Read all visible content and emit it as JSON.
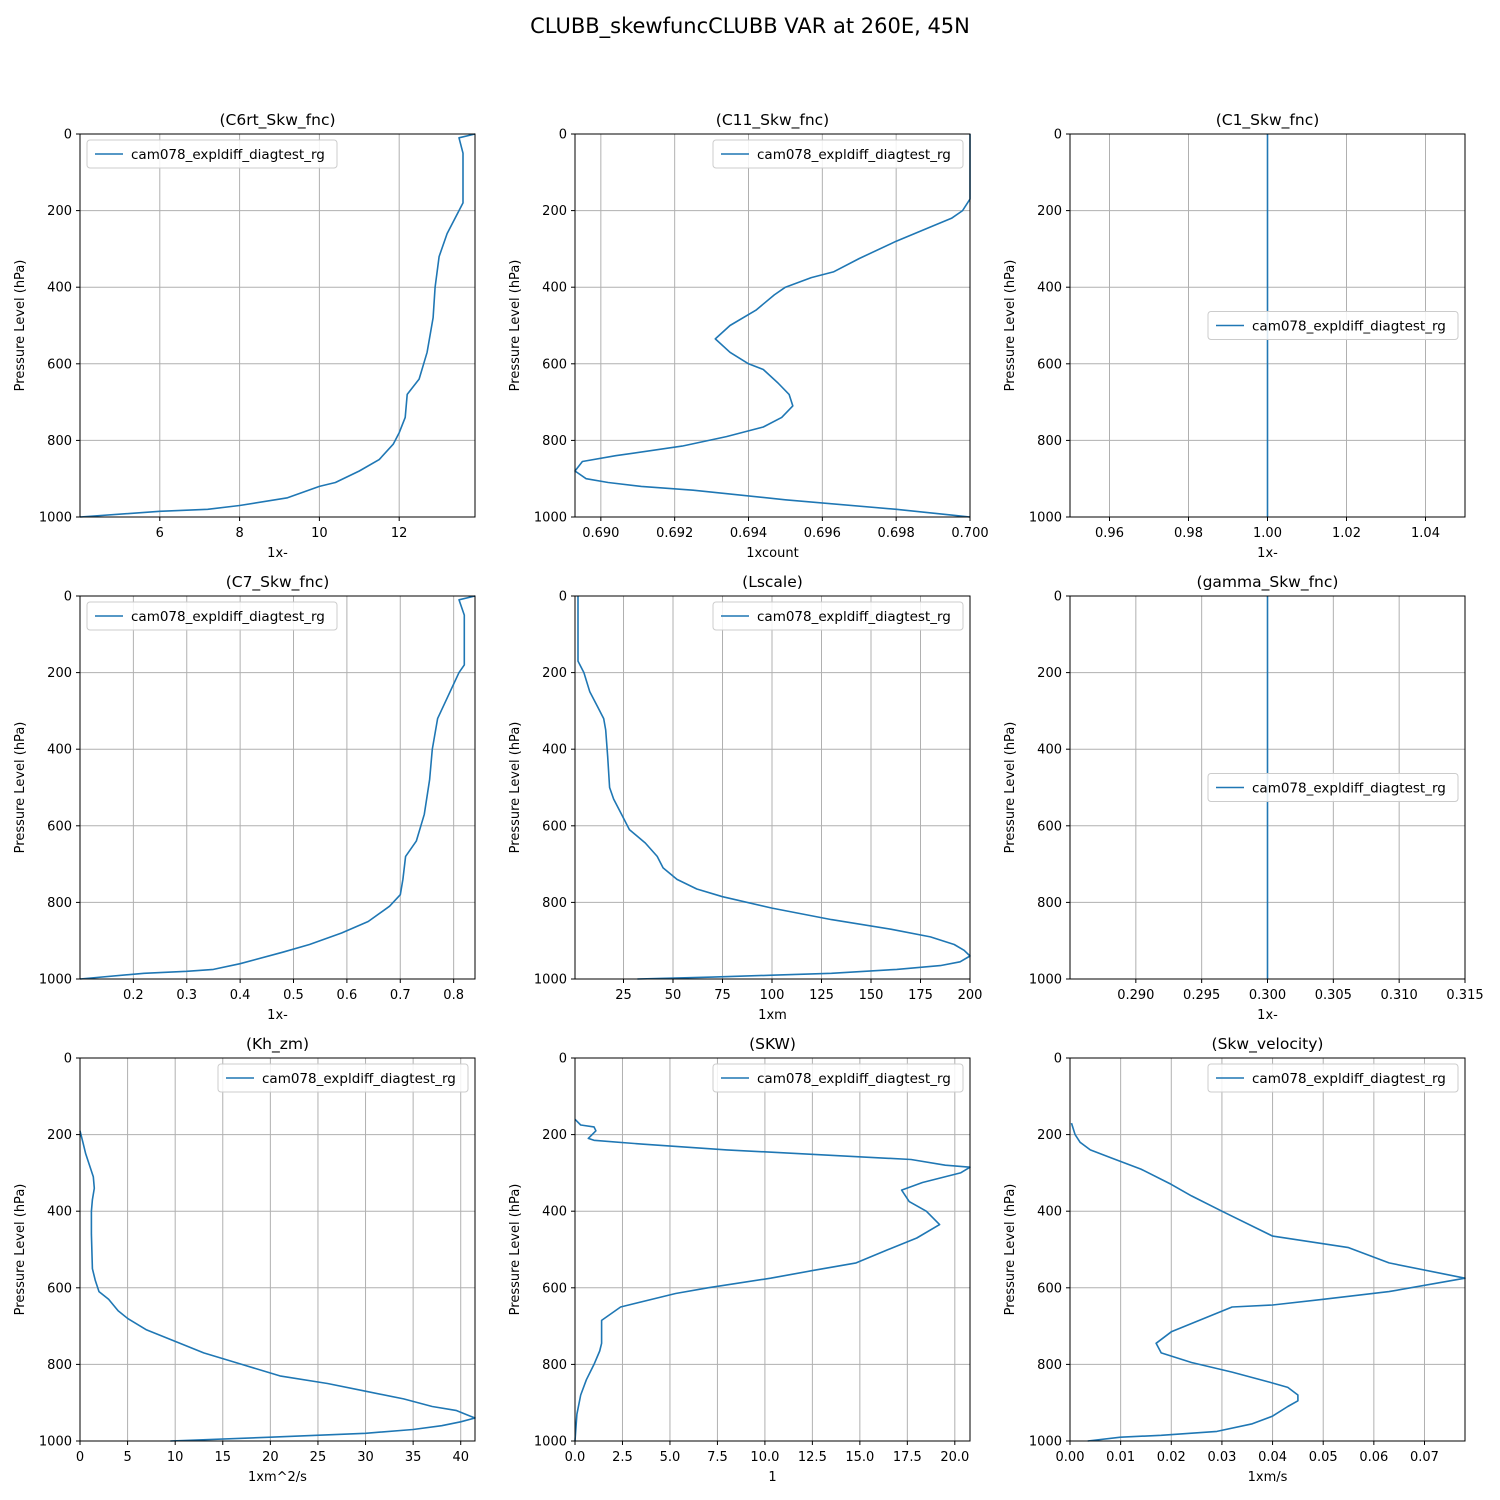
{
  "figure_title": "CLUBB_skewfuncCLUBB VAR at 260E, 45N",
  "colors": {
    "series": "#1f77b4",
    "grid": "#b0b0b0",
    "axis": "#000000"
  },
  "chart_data": [
    {
      "type": "line",
      "title": "(C6rt_Skw_fnc)",
      "xlabel": "1x-",
      "ylabel": "Pressure Level (hPa)",
      "xlim": [
        4.0,
        13.9
      ],
      "ylim": [
        1000,
        0
      ],
      "xticks": [
        6,
        8,
        10,
        12
      ],
      "xtick_labels": [
        "6",
        "8",
        "10",
        "12"
      ],
      "yticks": [
        0,
        200,
        400,
        600,
        800,
        1000
      ],
      "ytick_labels": [
        "0",
        "200",
        "400",
        "600",
        "800",
        "1000"
      ],
      "grid": true,
      "legend_position": "upper left",
      "series": [
        {
          "name": "cam078_expldiff_diagtest_rg",
          "x": [
            13.9,
            13.5,
            13.6,
            13.6,
            13.6,
            13.5,
            13.2,
            13.0,
            12.9,
            12.85,
            12.7,
            12.5,
            12.2,
            12.15,
            12.0,
            11.85,
            11.5,
            11.0,
            10.4,
            10.0,
            9.2,
            8.0,
            7.2,
            6.0,
            4.0
          ],
          "y": [
            0,
            10,
            50,
            120,
            180,
            200,
            260,
            320,
            400,
            480,
            570,
            640,
            680,
            740,
            780,
            810,
            850,
            880,
            910,
            920,
            950,
            970,
            980,
            985,
            1000
          ]
        }
      ]
    },
    {
      "type": "line",
      "title": "(C11_Skw_fnc)",
      "xlabel": "1xcount",
      "ylabel": "Pressure Level (hPa)",
      "xlim": [
        0.6893,
        0.7
      ],
      "ylim": [
        1000,
        0
      ],
      "xticks": [
        0.69,
        0.692,
        0.694,
        0.696,
        0.698,
        0.7
      ],
      "xtick_labels": [
        "0.690",
        "0.692",
        "0.694",
        "0.696",
        "0.698",
        "0.700"
      ],
      "yticks": [
        0,
        200,
        400,
        600,
        800,
        1000
      ],
      "ytick_labels": [
        "0",
        "200",
        "400",
        "600",
        "800",
        "1000"
      ],
      "grid": true,
      "legend_position": "upper right",
      "series": [
        {
          "name": "cam078_expldiff_diagtest_rg",
          "x": [
            0.7,
            0.7,
            0.6998,
            0.6995,
            0.699,
            0.698,
            0.697,
            0.6963,
            0.6957,
            0.695,
            0.6947,
            0.6942,
            0.6935,
            0.6931,
            0.6935,
            0.694,
            0.6944,
            0.6948,
            0.6951,
            0.6952,
            0.6949,
            0.6944,
            0.6934,
            0.6922,
            0.6904,
            0.6895,
            0.6893,
            0.6896,
            0.6902,
            0.6911,
            0.6925,
            0.695,
            0.698,
            0.6995,
            0.7
          ],
          "y": [
            0,
            170,
            200,
            220,
            240,
            280,
            325,
            360,
            375,
            400,
            420,
            460,
            500,
            535,
            570,
            600,
            615,
            650,
            680,
            710,
            740,
            765,
            790,
            815,
            840,
            855,
            880,
            900,
            910,
            920,
            930,
            955,
            980,
            995,
            1000
          ]
        }
      ]
    },
    {
      "type": "line",
      "title": "(C1_Skw_fnc)",
      "xlabel": "1x-",
      "ylabel": "Pressure Level (hPa)",
      "xlim": [
        0.95,
        1.05
      ],
      "ylim": [
        1000,
        0
      ],
      "xticks": [
        0.96,
        0.98,
        1.0,
        1.02,
        1.04
      ],
      "xtick_labels": [
        "0.96",
        "0.98",
        "1.00",
        "1.02",
        "1.04"
      ],
      "yticks": [
        0,
        200,
        400,
        600,
        800,
        1000
      ],
      "ytick_labels": [
        "0",
        "200",
        "400",
        "600",
        "800",
        "1000"
      ],
      "grid": true,
      "legend_position": "center right",
      "series": [
        {
          "name": "cam078_expldiff_diagtest_rg",
          "x": [
            1.0,
            1.0
          ],
          "y": [
            0,
            1000
          ]
        }
      ]
    },
    {
      "type": "line",
      "title": "(C7_Skw_fnc)",
      "xlabel": "1x-",
      "ylabel": "Pressure Level (hPa)",
      "xlim": [
        0.1,
        0.84
      ],
      "ylim": [
        1000,
        0
      ],
      "xticks": [
        0.2,
        0.3,
        0.4,
        0.5,
        0.6,
        0.7,
        0.8
      ],
      "xtick_labels": [
        "0.2",
        "0.3",
        "0.4",
        "0.5",
        "0.6",
        "0.7",
        "0.8"
      ],
      "yticks": [
        0,
        200,
        400,
        600,
        800,
        1000
      ],
      "ytick_labels": [
        "0",
        "200",
        "400",
        "600",
        "800",
        "1000"
      ],
      "grid": true,
      "legend_position": "upper left",
      "series": [
        {
          "name": "cam078_expldiff_diagtest_rg",
          "x": [
            0.84,
            0.81,
            0.82,
            0.82,
            0.82,
            0.81,
            0.79,
            0.77,
            0.76,
            0.755,
            0.745,
            0.73,
            0.71,
            0.705,
            0.7,
            0.68,
            0.64,
            0.59,
            0.53,
            0.48,
            0.4,
            0.35,
            0.3,
            0.22,
            0.1
          ],
          "y": [
            0,
            10,
            50,
            120,
            180,
            200,
            260,
            320,
            400,
            480,
            570,
            640,
            680,
            740,
            780,
            810,
            850,
            880,
            910,
            930,
            960,
            975,
            980,
            985,
            1000
          ]
        }
      ]
    },
    {
      "type": "line",
      "title": "(Lscale)",
      "xlabel": "1xm",
      "ylabel": "Pressure Level (hPa)",
      "xlim": [
        0.5,
        200
      ],
      "ylim": [
        1000,
        0
      ],
      "xticks": [
        25,
        50,
        75,
        100,
        125,
        150,
        175,
        200
      ],
      "xtick_labels": [
        "25",
        "50",
        "75",
        "100",
        "125",
        "150",
        "175",
        "200"
      ],
      "yticks": [
        0,
        200,
        400,
        600,
        800,
        1000
      ],
      "ytick_labels": [
        "0",
        "200",
        "400",
        "600",
        "800",
        "1000"
      ],
      "grid": true,
      "legend_position": "upper right",
      "series": [
        {
          "name": "cam078_expldiff_diagtest_rg",
          "x": [
            2,
            2,
            2,
            5,
            8,
            12,
            15,
            16,
            17,
            18,
            20,
            24,
            28,
            36,
            42,
            45,
            52,
            62,
            75,
            100,
            130,
            160,
            180,
            192,
            197,
            200,
            195,
            185,
            163,
            130,
            100,
            70,
            32
          ],
          "y": [
            0,
            50,
            170,
            200,
            250,
            290,
            320,
            350,
            420,
            500,
            530,
            570,
            610,
            645,
            680,
            710,
            740,
            765,
            785,
            815,
            845,
            870,
            890,
            910,
            925,
            940,
            955,
            965,
            975,
            985,
            990,
            995,
            1000
          ]
        }
      ]
    },
    {
      "type": "line",
      "title": "(gamma_Skw_fnc)",
      "xlabel": "1x-",
      "ylabel": "Pressure Level (hPa)",
      "xlim": [
        0.285,
        0.315
      ],
      "ylim": [
        1000,
        0
      ],
      "xticks": [
        0.29,
        0.295,
        0.3,
        0.305,
        0.31,
        0.315
      ],
      "xtick_labels": [
        "0.290",
        "0.295",
        "0.300",
        "0.305",
        "0.310",
        "0.315"
      ],
      "yticks": [
        0,
        200,
        400,
        600,
        800,
        1000
      ],
      "ytick_labels": [
        "0",
        "200",
        "400",
        "600",
        "800",
        "1000"
      ],
      "grid": true,
      "legend_position": "center right",
      "series": [
        {
          "name": "cam078_expldiff_diagtest_rg",
          "x": [
            0.3,
            0.3
          ],
          "y": [
            0,
            1000
          ]
        }
      ]
    },
    {
      "type": "line",
      "title": "(Kh_zm)",
      "xlabel": "1xm^2/s",
      "ylabel": "Pressure Level (hPa)",
      "xlim": [
        0,
        41.5
      ],
      "ylim": [
        1000,
        0
      ],
      "xticks": [
        0,
        5,
        10,
        15,
        20,
        25,
        30,
        35,
        40
      ],
      "xtick_labels": [
        "0",
        "5",
        "10",
        "15",
        "20",
        "25",
        "30",
        "35",
        "40"
      ],
      "yticks": [
        0,
        200,
        400,
        600,
        800,
        1000
      ],
      "ytick_labels": [
        "0",
        "200",
        "400",
        "600",
        "800",
        "1000"
      ],
      "grid": true,
      "legend_position": "upper right",
      "series": [
        {
          "name": "cam078_expldiff_diagtest_rg",
          "x": [
            0,
            0.3,
            0.6,
            1.0,
            1.4,
            1.5,
            1.3,
            1.2,
            1.2,
            1.3,
            1.6,
            2.0,
            3.0,
            4.0,
            5.0,
            7.0,
            10.0,
            13.0,
            17.0,
            21.0,
            26.0,
            30.0,
            34.0,
            37.0,
            39.5,
            41.0,
            41.5,
            40.0,
            38.0,
            35.0,
            30.0,
            20.0,
            9.5
          ],
          "y": [
            190,
            220,
            250,
            280,
            310,
            340,
            370,
            400,
            460,
            550,
            580,
            610,
            630,
            660,
            680,
            710,
            740,
            770,
            800,
            830,
            850,
            870,
            890,
            910,
            920,
            935,
            940,
            950,
            960,
            970,
            980,
            990,
            1000
          ]
        }
      ]
    },
    {
      "type": "line",
      "title": "(SKW)",
      "xlabel": "1",
      "ylabel": "Pressure Level (hPa)",
      "xlim": [
        0,
        20.8
      ],
      "ylim": [
        1000,
        0
      ],
      "xticks": [
        0.0,
        2.5,
        5.0,
        7.5,
        10.0,
        12.5,
        15.0,
        17.5,
        20.0
      ],
      "xtick_labels": [
        "0.0",
        "2.5",
        "5.0",
        "7.5",
        "10.0",
        "12.5",
        "15.0",
        "17.5",
        "20.0"
      ],
      "yticks": [
        0,
        200,
        400,
        600,
        800,
        1000
      ],
      "ytick_labels": [
        "0",
        "200",
        "400",
        "600",
        "800",
        "1000"
      ],
      "grid": true,
      "legend_position": "upper right",
      "series": [
        {
          "name": "cam078_expldiff_diagtest_rg",
          "x": [
            0.0,
            0.3,
            1.0,
            1.1,
            0.7,
            1.0,
            3.6,
            8.0,
            17.7,
            19.5,
            20.8,
            20.3,
            18.3,
            17.2,
            17.6,
            18.5,
            19.2,
            18.0,
            16.5,
            14.8,
            12.5,
            10.3,
            7.0,
            5.3,
            2.4,
            1.4,
            1.4,
            1.3,
            1.0,
            0.6,
            0.3,
            0.1,
            0.0
          ],
          "y": [
            160,
            175,
            180,
            190,
            210,
            215,
            225,
            240,
            265,
            280,
            285,
            300,
            325,
            345,
            375,
            400,
            435,
            470,
            500,
            535,
            555,
            575,
            600,
            615,
            650,
            685,
            745,
            765,
            800,
            840,
            880,
            930,
            1000
          ]
        }
      ]
    },
    {
      "type": "line",
      "title": "(Skw_velocity)",
      "xlabel": "1xm/s",
      "ylabel": "Pressure Level (hPa)",
      "xlim": [
        0,
        0.078
      ],
      "ylim": [
        1000,
        0
      ],
      "xticks": [
        0.0,
        0.01,
        0.02,
        0.03,
        0.04,
        0.05,
        0.06,
        0.07
      ],
      "xtick_labels": [
        "0.00",
        "0.01",
        "0.02",
        "0.03",
        "0.04",
        "0.05",
        "0.06",
        "0.07"
      ],
      "yticks": [
        0,
        200,
        400,
        600,
        800,
        1000
      ],
      "ytick_labels": [
        "0",
        "200",
        "400",
        "600",
        "800",
        "1000"
      ],
      "grid": true,
      "legend_position": "upper right",
      "series": [
        {
          "name": "cam078_expldiff_diagtest_rg",
          "x": [
            0.0003,
            0.001,
            0.002,
            0.004,
            0.008,
            0.014,
            0.02,
            0.024,
            0.03,
            0.04,
            0.055,
            0.063,
            0.078,
            0.063,
            0.05,
            0.04,
            0.032,
            0.02,
            0.017,
            0.018,
            0.024,
            0.032,
            0.039,
            0.043,
            0.045,
            0.045,
            0.043,
            0.04,
            0.036,
            0.029,
            0.018,
            0.01,
            0.0035
          ],
          "y": [
            170,
            200,
            220,
            240,
            260,
            290,
            330,
            360,
            400,
            465,
            495,
            535,
            575,
            610,
            630,
            645,
            650,
            715,
            745,
            770,
            795,
            820,
            845,
            860,
            880,
            895,
            910,
            935,
            955,
            975,
            985,
            990,
            1000
          ]
        }
      ]
    }
  ]
}
